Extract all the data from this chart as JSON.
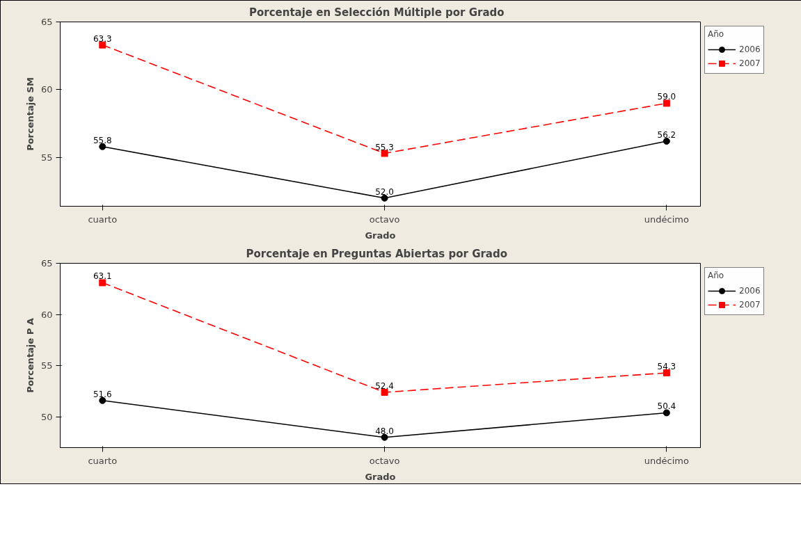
{
  "chart_data": [
    {
      "type": "line",
      "title": "Porcentaje en Selección Múltiple  por  Grado",
      "xlabel": "Grado",
      "ylabel": "Porcentaje SM",
      "legend_title": "Año",
      "categories": [
        "cuarto",
        "octavo",
        "undécimo"
      ],
      "ylim": [
        51.4,
        65
      ],
      "yticks": [
        55,
        60,
        65
      ],
      "grid": false,
      "legend": "top right",
      "series": [
        {
          "name": "2006",
          "color": "#000000",
          "values": [
            55.8,
            52.0,
            56.2
          ],
          "value_labels": [
            "55.8",
            "52.0",
            "56.2"
          ],
          "marker": "circle",
          "line_style": "solid"
        },
        {
          "name": "2007",
          "color": "#ff0000",
          "values": [
            63.3,
            55.3,
            59.0
          ],
          "value_labels": [
            "63.3",
            "55.3",
            "59.0"
          ],
          "marker": "square",
          "line_style": "dashed"
        }
      ]
    },
    {
      "type": "line",
      "title": "Porcentaje en Preguntas Abiertas  por  Grado",
      "xlabel": "Grado",
      "ylabel": "Porcentaje P A",
      "legend_title": "Año",
      "categories": [
        "cuarto",
        "octavo",
        "undécimo"
      ],
      "ylim": [
        47.0,
        65
      ],
      "yticks": [
        50,
        55,
        60,
        65
      ],
      "grid": false,
      "legend": "top right",
      "series": [
        {
          "name": "2006",
          "color": "#000000",
          "values": [
            51.6,
            48.0,
            50.4
          ],
          "value_labels": [
            "51.6",
            "48.0",
            "50.4"
          ],
          "marker": "circle",
          "line_style": "solid"
        },
        {
          "name": "2007",
          "color": "#ff0000",
          "values": [
            63.1,
            52.4,
            54.3
          ],
          "value_labels": [
            "63.1",
            "52.4",
            "54.3"
          ],
          "marker": "square",
          "line_style": "dashed"
        }
      ]
    }
  ]
}
